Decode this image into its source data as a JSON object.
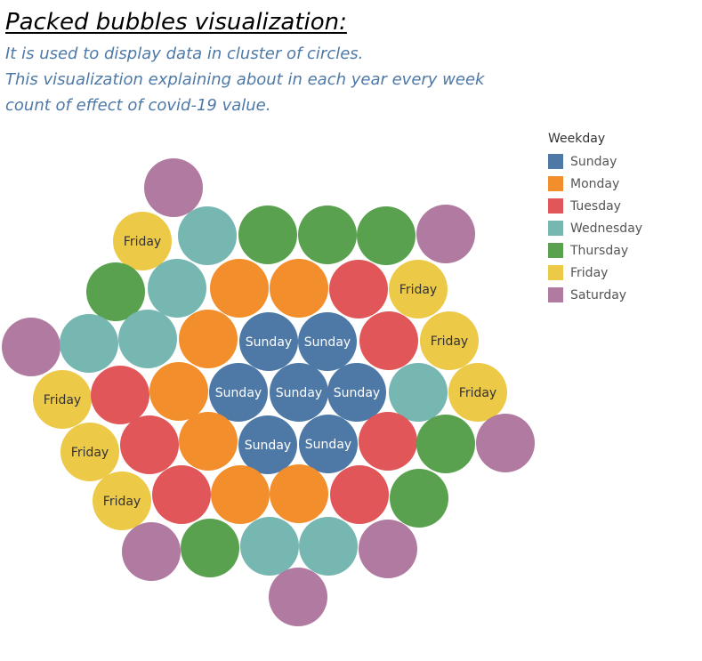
{
  "header": {
    "title": "Packed bubbles visualization:",
    "subtitle_lines": [
      "It is used to display data in cluster of circles.",
      "This visualization explaining about in each year every week",
      "count of effect of covid-19 value."
    ]
  },
  "legend": {
    "title": "Weekday",
    "items": [
      {
        "label": "Sunday",
        "color": "#4e79a7"
      },
      {
        "label": "Monday",
        "color": "#f28e2b"
      },
      {
        "label": "Tuesday",
        "color": "#e15759"
      },
      {
        "label": "Wednesday",
        "color": "#76b7b2"
      },
      {
        "label": "Thursday",
        "color": "#59a14f"
      },
      {
        "label": "Friday",
        "color": "#edc948"
      },
      {
        "label": "Saturday",
        "color": "#b07aa1"
      }
    ]
  },
  "chart_data": {
    "type": "packed-bubbles",
    "color_field": "Weekday",
    "label_text_colors": {
      "Sunday": "#ffffff",
      "Friday": "#333333"
    },
    "bubbles": [
      {
        "weekday": "Saturday",
        "label": ""
      },
      {
        "weekday": "Friday",
        "label": "Friday"
      },
      {
        "weekday": "Wednesday",
        "label": ""
      },
      {
        "weekday": "Thursday",
        "label": ""
      },
      {
        "weekday": "Thursday",
        "label": ""
      },
      {
        "weekday": "Thursday",
        "label": ""
      },
      {
        "weekday": "Saturday",
        "label": ""
      },
      {
        "weekday": "Thursday",
        "label": ""
      },
      {
        "weekday": "Wednesday",
        "label": ""
      },
      {
        "weekday": "Monday",
        "label": ""
      },
      {
        "weekday": "Monday",
        "label": ""
      },
      {
        "weekday": "Tuesday",
        "label": ""
      },
      {
        "weekday": "Friday",
        "label": "Friday"
      },
      {
        "weekday": "Saturday",
        "label": ""
      },
      {
        "weekday": "Wednesday",
        "label": ""
      },
      {
        "weekday": "Wednesday",
        "label": ""
      },
      {
        "weekday": "Monday",
        "label": ""
      },
      {
        "weekday": "Sunday",
        "label": "Sunday"
      },
      {
        "weekday": "Sunday",
        "label": "Sunday"
      },
      {
        "weekday": "Tuesday",
        "label": ""
      },
      {
        "weekday": "Friday",
        "label": "Friday"
      },
      {
        "weekday": "Friday",
        "label": "Friday"
      },
      {
        "weekday": "Tuesday",
        "label": ""
      },
      {
        "weekday": "Monday",
        "label": ""
      },
      {
        "weekday": "Sunday",
        "label": "Sunday"
      },
      {
        "weekday": "Sunday",
        "label": "Sunday"
      },
      {
        "weekday": "Sunday",
        "label": "Sunday"
      },
      {
        "weekday": "Wednesday",
        "label": ""
      },
      {
        "weekday": "Friday",
        "label": "Friday"
      },
      {
        "weekday": "Friday",
        "label": "Friday"
      },
      {
        "weekday": "Tuesday",
        "label": ""
      },
      {
        "weekday": "Monday",
        "label": ""
      },
      {
        "weekday": "Sunday",
        "label": "Sunday"
      },
      {
        "weekday": "Sunday",
        "label": "Sunday"
      },
      {
        "weekday": "Tuesday",
        "label": ""
      },
      {
        "weekday": "Thursday",
        "label": ""
      },
      {
        "weekday": "Saturday",
        "label": ""
      },
      {
        "weekday": "Friday",
        "label": "Friday"
      },
      {
        "weekday": "Tuesday",
        "label": ""
      },
      {
        "weekday": "Monday",
        "label": ""
      },
      {
        "weekday": "Monday",
        "label": ""
      },
      {
        "weekday": "Tuesday",
        "label": ""
      },
      {
        "weekday": "Thursday",
        "label": ""
      },
      {
        "weekday": "Saturday",
        "label": ""
      },
      {
        "weekday": "Thursday",
        "label": ""
      },
      {
        "weekday": "Wednesday",
        "label": ""
      },
      {
        "weekday": "Wednesday",
        "label": ""
      },
      {
        "weekday": "Saturday",
        "label": ""
      },
      {
        "weekday": "Saturday",
        "label": ""
      }
    ]
  }
}
